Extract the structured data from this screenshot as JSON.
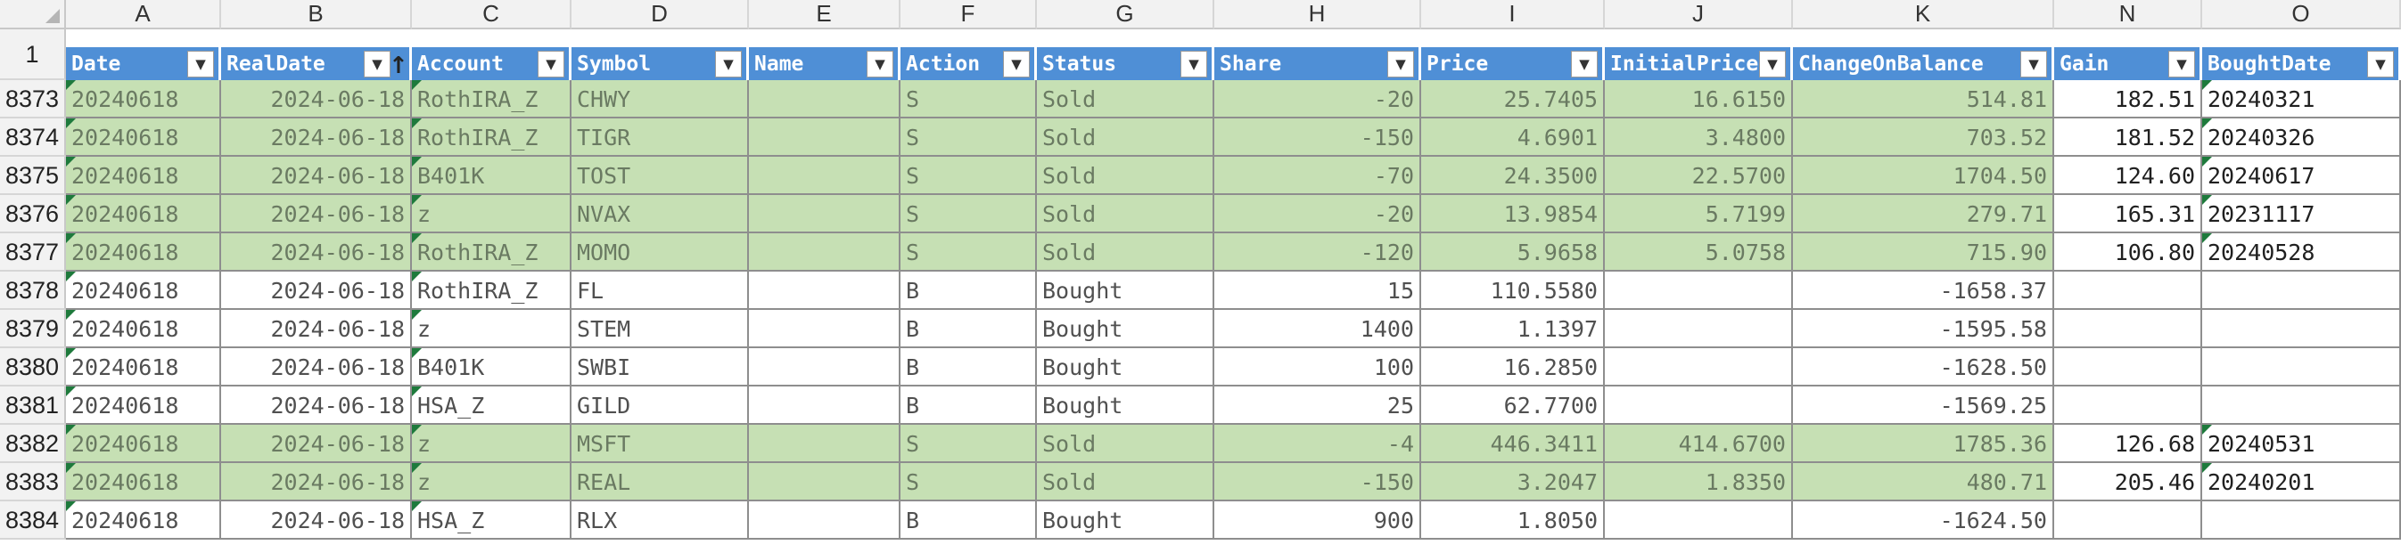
{
  "columns": [
    {
      "letter": "A",
      "header": "Date",
      "filter_icon": "filter-dropdown-icon"
    },
    {
      "letter": "B",
      "header": "RealDate",
      "filter_icon": "filter-sort-desc-icon",
      "sorted": "↑"
    },
    {
      "letter": "C",
      "header": "Account",
      "filter_icon": "filter-dropdown-icon"
    },
    {
      "letter": "D",
      "header": "Symbol",
      "filter_icon": "filter-dropdown-icon"
    },
    {
      "letter": "E",
      "header": "Name",
      "filter_icon": "filter-dropdown-icon"
    },
    {
      "letter": "F",
      "header": "Action",
      "filter_icon": "filter-dropdown-icon"
    },
    {
      "letter": "G",
      "header": "Status",
      "filter_icon": "filter-dropdown-icon"
    },
    {
      "letter": "H",
      "header": "Share",
      "filter_icon": "filter-dropdown-icon"
    },
    {
      "letter": "I",
      "header": "Price",
      "filter_icon": "filter-dropdown-icon"
    },
    {
      "letter": "J",
      "header": "InitialPrice",
      "filter_icon": "filter-dropdown-icon"
    },
    {
      "letter": "K",
      "header": "ChangeOnBalance",
      "filter_icon": "filter-dropdown-icon"
    },
    {
      "letter": "N",
      "header": "Gain",
      "filter_icon": "filter-dropdown-icon"
    },
    {
      "letter": "O",
      "header": "BoughtDate",
      "filter_icon": "filter-dropdown-icon"
    }
  ],
  "header_row_number": "1",
  "rows": [
    {
      "num": "8373",
      "highlight": true,
      "cells": [
        "20240618",
        "2024-06-18",
        "RothIRA_Z",
        "CHWY",
        "",
        "S",
        "Sold",
        "-20",
        "25.7405",
        "16.6150",
        "514.81",
        "182.51",
        "20240321"
      ]
    },
    {
      "num": "8374",
      "highlight": true,
      "cells": [
        "20240618",
        "2024-06-18",
        "RothIRA_Z",
        "TIGR",
        "",
        "S",
        "Sold",
        "-150",
        "4.6901",
        "3.4800",
        "703.52",
        "181.52",
        "20240326"
      ]
    },
    {
      "num": "8375",
      "highlight": true,
      "cells": [
        "20240618",
        "2024-06-18",
        "B401K",
        "TOST",
        "",
        "S",
        "Sold",
        "-70",
        "24.3500",
        "22.5700",
        "1704.50",
        "124.60",
        "20240617"
      ]
    },
    {
      "num": "8376",
      "highlight": true,
      "cells": [
        "20240618",
        "2024-06-18",
        "z",
        "NVAX",
        "",
        "S",
        "Sold",
        "-20",
        "13.9854",
        "5.7199",
        "279.71",
        "165.31",
        "20231117"
      ]
    },
    {
      "num": "8377",
      "highlight": true,
      "cells": [
        "20240618",
        "2024-06-18",
        "RothIRA_Z",
        "MOMO",
        "",
        "S",
        "Sold",
        "-120",
        "5.9658",
        "5.0758",
        "715.90",
        "106.80",
        "20240528"
      ]
    },
    {
      "num": "8378",
      "highlight": false,
      "cells": [
        "20240618",
        "2024-06-18",
        "RothIRA_Z",
        "FL",
        "",
        "B",
        "Bought",
        "15",
        "110.5580",
        "",
        "-1658.37",
        "",
        ""
      ]
    },
    {
      "num": "8379",
      "highlight": false,
      "cells": [
        "20240618",
        "2024-06-18",
        "z",
        "STEM",
        "",
        "B",
        "Bought",
        "1400",
        "1.1397",
        "",
        "-1595.58",
        "",
        ""
      ]
    },
    {
      "num": "8380",
      "highlight": false,
      "cells": [
        "20240618",
        "2024-06-18",
        "B401K",
        "SWBI",
        "",
        "B",
        "Bought",
        "100",
        "16.2850",
        "",
        "-1628.50",
        "",
        ""
      ]
    },
    {
      "num": "8381",
      "highlight": false,
      "cells": [
        "20240618",
        "2024-06-18",
        "HSA_Z",
        "GILD",
        "",
        "B",
        "Bought",
        "25",
        "62.7700",
        "",
        "-1569.25",
        "",
        ""
      ]
    },
    {
      "num": "8382",
      "highlight": true,
      "cells": [
        "20240618",
        "2024-06-18",
        "z",
        "MSFT",
        "",
        "S",
        "Sold",
        "-4",
        "446.3411",
        "414.6700",
        "1785.36",
        "126.68",
        "20240531"
      ]
    },
    {
      "num": "8383",
      "highlight": true,
      "cells": [
        "20240618",
        "2024-06-18",
        "z",
        "REAL",
        "",
        "S",
        "Sold",
        "-150",
        "3.2047",
        "1.8350",
        "480.71",
        "205.46",
        "20240201"
      ]
    },
    {
      "num": "8384",
      "highlight": false,
      "cells": [
        "20240618",
        "2024-06-18",
        "HSA_Z",
        "RLX",
        "",
        "B",
        "Bought",
        "900",
        "1.8050",
        "",
        "-1624.50",
        "",
        ""
      ]
    }
  ],
  "colors": {
    "header_fill": "#4f8fd6",
    "highlight_fill": "#c6e0b4",
    "comment_marker": "#1e7a3c",
    "grid_line": "#8e8e8e"
  }
}
